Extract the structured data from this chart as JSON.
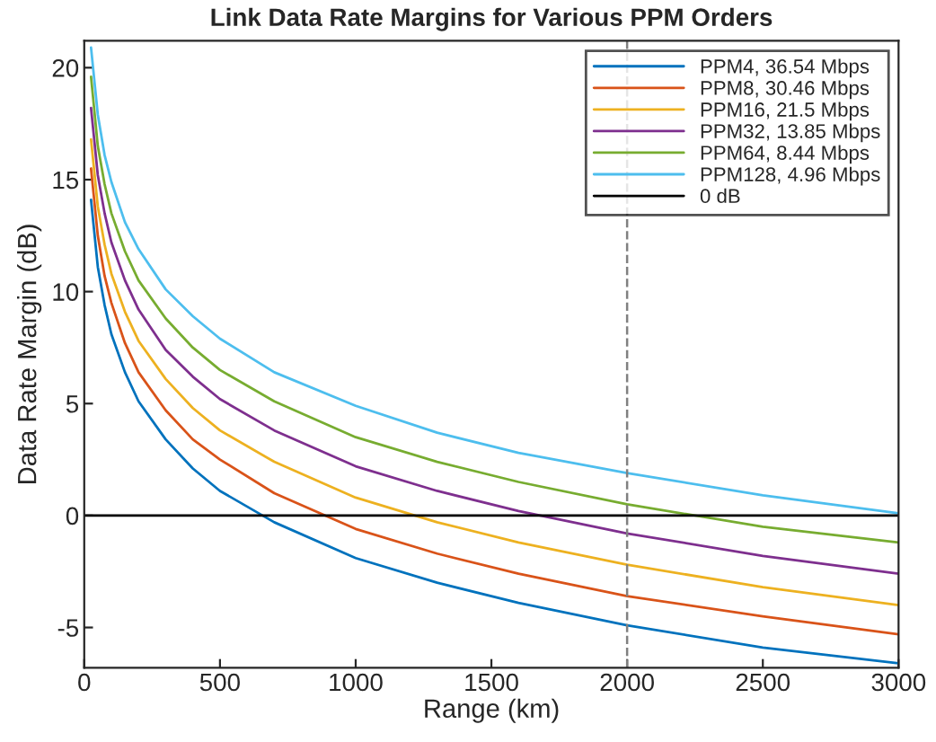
{
  "chart_data": {
    "type": "line",
    "title": "Link Data Rate Margins for Various PPM Orders",
    "xlabel": "Range (km)",
    "ylabel": "Data Rate Margin (dB)",
    "x": [
      25,
      50,
      75,
      100,
      150,
      200,
      300,
      400,
      500,
      700,
      1000,
      1300,
      1600,
      2000,
      2500,
      3000
    ],
    "series": [
      {
        "name": "PPM4, 36.54 Mbps",
        "color": "#0072bd",
        "values": [
          14.1,
          11.1,
          9.4,
          8.1,
          6.4,
          5.1,
          3.4,
          2.1,
          1.1,
          -0.3,
          -1.9,
          -3.0,
          -3.9,
          -4.9,
          -5.9,
          -6.6
        ]
      },
      {
        "name": "PPM8, 30.46 Mbps",
        "color": "#d95319",
        "values": [
          15.5,
          12.5,
          10.7,
          9.5,
          7.7,
          6.4,
          4.7,
          3.4,
          2.5,
          1.0,
          -0.6,
          -1.7,
          -2.6,
          -3.6,
          -4.5,
          -5.3
        ]
      },
      {
        "name": "PPM16, 21.5 Mbps",
        "color": "#edb120",
        "values": [
          16.8,
          13.8,
          12.1,
          10.8,
          9.1,
          7.8,
          6.1,
          4.8,
          3.8,
          2.4,
          0.8,
          -0.3,
          -1.2,
          -2.2,
          -3.2,
          -4.0
        ]
      },
      {
        "name": "PPM32, 13.85 Mbps",
        "color": "#7e2f8e",
        "values": [
          18.2,
          15.2,
          13.5,
          12.2,
          10.5,
          9.2,
          7.4,
          6.2,
          5.2,
          3.8,
          2.2,
          1.1,
          0.2,
          -0.8,
          -1.8,
          -2.6
        ]
      },
      {
        "name": "PPM64, 8.44 Mbps",
        "color": "#77ac30",
        "values": [
          19.6,
          16.5,
          14.8,
          13.5,
          11.8,
          10.5,
          8.8,
          7.5,
          6.5,
          5.1,
          3.5,
          2.4,
          1.5,
          0.5,
          -0.5,
          -1.2
        ]
      },
      {
        "name": "PPM128, 4.96 Mbps",
        "color": "#4dbeee",
        "values": [
          20.9,
          17.9,
          16.1,
          14.9,
          13.1,
          11.9,
          10.1,
          8.9,
          7.9,
          6.4,
          4.9,
          3.7,
          2.8,
          1.9,
          0.9,
          0.1
        ]
      }
    ],
    "ref_lines": [
      {
        "axis": "y",
        "value": 0,
        "label": "0 dB",
        "color": "#000000",
        "line_style": "solid"
      },
      {
        "axis": "x",
        "value": 2000,
        "color": "#808080",
        "line_style": "dashed"
      }
    ],
    "xlim": [
      0,
      3000
    ],
    "xticks": [
      0,
      500,
      1000,
      1500,
      2000,
      2500,
      3000
    ],
    "ylim": [
      -6.8,
      21.2
    ],
    "yticks": [
      -5,
      0,
      5,
      10,
      15,
      20
    ],
    "grid": false,
    "legend": "top right",
    "marker": "none",
    "line_style": "solid"
  }
}
